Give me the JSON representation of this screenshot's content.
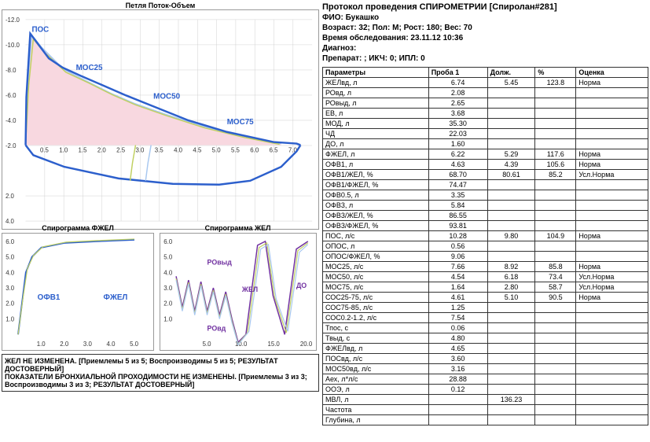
{
  "flow_volume": {
    "title": "Петля Поток-Объем",
    "labels": {
      "pos": "ПОС",
      "mos25": "МОС25",
      "mos50": "МОС50",
      "mos75": "МОС75"
    },
    "xaxis": [
      0.5,
      1.0,
      1.5,
      2.0,
      2.5,
      3.0,
      3.5,
      4.0,
      4.5,
      5.0,
      5.5,
      6.0,
      6.5,
      7.0
    ],
    "yaxis": [
      -12.0,
      -10.0,
      -8.0,
      -6.0,
      -4.0,
      -2.0,
      2.0,
      4.0
    ],
    "colors": {
      "main": "#2c5fcc",
      "light1": "#a8c8f0",
      "light2": "#c0d060",
      "fill": "#f8d8e0",
      "grid": "#d0d0d0"
    }
  },
  "fvc_chart": {
    "title": "Спирограмма ФЖЕЛ",
    "labels": {
      "ofv1": "ОФВ1",
      "fzhel": "ФЖЕЛ"
    },
    "xaxis": [
      1.0,
      2.0,
      3.0,
      4.0,
      5.0
    ],
    "yaxis": [
      1.0,
      2.0,
      3.0,
      4.0,
      5.0,
      6.0
    ]
  },
  "vc_chart": {
    "title": "Спирограмма ЖЕЛ",
    "labels": {
      "rovyd": "РОвыд",
      "zhel": "ЖЕЛ",
      "do": "ДО",
      "rovd": "РОвд"
    },
    "xaxis": [
      5.0,
      10.0,
      15.0,
      20.0
    ],
    "yaxis": [
      1.0,
      2.0,
      3.0,
      4.0,
      5.0,
      6.0
    ]
  },
  "conclusion": {
    "line1": "ЖЕЛ НЕ ИЗМЕНЕНА.  [Приемлемы 5 из 5; Воспроизводимы 5 из 5; РЕЗУЛЬТАТ ДОСТОВЕРНЫЙ]",
    "line2": "ПОКАЗАТЕЛИ БРОНХИАЛЬНОЙ ПРОХОДИМОСТИ НЕ ИЗМЕНЕНЫ. [Приемлемы 3 из 3; Воспроизводимы 3 из 3; РЕЗУЛЬТАТ ДОСТОВЕРНЫЙ]"
  },
  "header": {
    "title": "Протокол проведения СПИРОМЕТРИИ [Спиролан#281]",
    "fio": "ФИО: Букашко",
    "age": "Возраст: 32; Пол: М; Рост: 180; Вес: 70",
    "time": "Время обследования: 23.11.12 10:36",
    "diag": "Диагноз:",
    "prep": "Препарат: ; ИКЧ: 0; ИПЛ: 0"
  },
  "table": {
    "headers": [
      "Параметры",
      "Проба 1",
      "Долж.",
      "%",
      "Оценка"
    ],
    "rows": [
      [
        "ЖЕЛвд, л",
        "6.74",
        "5.45",
        "123.8",
        "Норма"
      ],
      [
        "РОвд, л",
        "2.08",
        "",
        "",
        ""
      ],
      [
        "РОвыд, л",
        "2.65",
        "",
        "",
        ""
      ],
      [
        "ЕВ, л",
        "3.68",
        "",
        "",
        ""
      ],
      [
        "МОД, л",
        "35.30",
        "",
        "",
        ""
      ],
      [
        "ЧД",
        "22.03",
        "",
        "",
        ""
      ],
      [
        "ДО, л",
        "1.60",
        "",
        "",
        ""
      ],
      [
        "ФЖЕЛ, л",
        "6.22",
        "5.29",
        "117.6",
        "Норма"
      ],
      [
        "ОФВ1, л",
        "4.63",
        "4.39",
        "105.6",
        "Норма"
      ],
      [
        "ОФВ1/ЖЕЛ, %",
        "68.70",
        "80.61",
        "85.2",
        "Усл.Норма"
      ],
      [
        "ОФВ1/ФЖЕЛ, %",
        "74.47",
        "",
        "",
        ""
      ],
      [
        "ОФВ0.5, л",
        "3.35",
        "",
        "",
        ""
      ],
      [
        "ОФВ3, л",
        "5.84",
        "",
        "",
        ""
      ],
      [
        "ОФВ3/ЖЕЛ, %",
        "86.55",
        "",
        "",
        ""
      ],
      [
        "ОФВ3/ФЖЕЛ, %",
        "93.81",
        "",
        "",
        ""
      ],
      [
        "ПОС, л/с",
        "10.28",
        "9.80",
        "104.9",
        "Норма"
      ],
      [
        "ОПОС, л",
        "0.56",
        "",
        "",
        ""
      ],
      [
        "ОПОС/ФЖЕЛ, %",
        "9.06",
        "",
        "",
        ""
      ],
      [
        "МОС25, л/с",
        "7.66",
        "8.92",
        "85.8",
        "Норма"
      ],
      [
        "МОС50, л/с",
        "4.54",
        "6.18",
        "73.4",
        "Усл.Норма"
      ],
      [
        "МОС75, л/с",
        "1.64",
        "2.80",
        "58.7",
        "Усл.Норма"
      ],
      [
        "СОС25-75, л/с",
        "4.61",
        "5.10",
        "90.5",
        "Норма"
      ],
      [
        "СОС75-85, л/с",
        "1.25",
        "",
        "",
        ""
      ],
      [
        "СОС0.2-1.2, л/с",
        "7.54",
        "",
        "",
        ""
      ],
      [
        "Тпос, с",
        "0.06",
        "",
        "",
        ""
      ],
      [
        "Твыд, с",
        "4.80",
        "",
        "",
        ""
      ],
      [
        "ФЖЕЛвд, л",
        "4.65",
        "",
        "",
        ""
      ],
      [
        "ПОСвд, л/с",
        "3.60",
        "",
        "",
        ""
      ],
      [
        "МОС50вд, л/с",
        "3.16",
        "",
        "",
        ""
      ],
      [
        "Аех, л*л/с",
        "28.88",
        "",
        "",
        ""
      ],
      [
        "ООЭ, л",
        "0.12",
        "",
        "",
        ""
      ],
      [
        "МВЛ, л",
        "",
        "136.23",
        "",
        ""
      ],
      [
        "Частота",
        "",
        "",
        "",
        ""
      ],
      [
        "Глубина, л",
        "",
        "",
        "",
        ""
      ]
    ]
  }
}
